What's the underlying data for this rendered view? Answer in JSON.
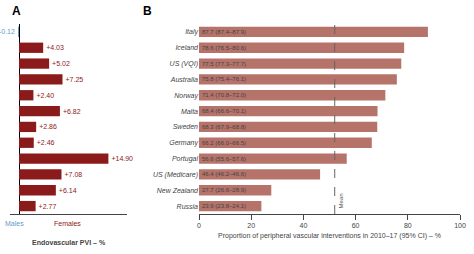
{
  "chart_data": [
    {
      "type": "bar",
      "orientation": "horizontal",
      "title": "A",
      "categories": [
        null,
        null,
        null,
        null,
        null,
        null,
        null,
        null,
        null,
        null,
        null,
        null
      ],
      "values": [
        -0.12,
        4.03,
        5.02,
        7.25,
        2.4,
        6.82,
        2.86,
        2.46,
        14.9,
        7.08,
        6.14,
        2.77
      ],
      "value_labels": [
        "-0.12",
        "+4.03",
        "+5.02",
        "+7.25",
        "+2.40",
        "+6.82",
        "+2.86",
        "+2.46",
        "+14.90",
        "+7.08",
        "+6.14",
        "+2.77"
      ],
      "data_labels": true,
      "colors": [
        "#6699CC",
        "#8B1A1A",
        "#8B1A1A",
        "#8B1A1A",
        "#8B1A1A",
        "#8B1A1A",
        "#8B1A1A",
        "#8B1A1A",
        "#8B1A1A",
        "#8B1A1A",
        "#8B1A1A",
        "#8B1A1A"
      ],
      "xlim": [
        -1.5,
        18
      ],
      "xticks": [],
      "tick_labels": false,
      "grid": false,
      "xlabel": "Endovascular PVI – %",
      "annotations": [
        {
          "text": "Males",
          "x": -0.8,
          "color": "#6699CC"
        },
        {
          "text": "Females",
          "x": 8,
          "color": "#8B1A1A"
        }
      ]
    },
    {
      "type": "bar",
      "orientation": "horizontal",
      "title": "B",
      "categories": [
        "Italy",
        "Iceland",
        "US (VQI)",
        "Australia",
        "Norway",
        "Malta",
        "Sweden",
        "Germany",
        "Portugal",
        "US (Medicare)",
        "New Zealand",
        "Russia"
      ],
      "values": [
        87.7,
        78.6,
        77.5,
        75.8,
        71.4,
        68.4,
        68.3,
        66.2,
        56.6,
        46.4,
        27.7,
        23.9
      ],
      "value_labels": [
        "87.7 (87.4–87.9)",
        "78.6 (76.5–80.6)",
        "77.5 (77.3–77.7)",
        "75.8 (75.4–76.1)",
        "71.4 (70.8–72.0)",
        "68.4 (66.6–70.1)",
        "68.3 (67.9–68.8)",
        "66.2 (66.0–66.5)",
        "56.6 (55.6–57.6)",
        "46.4 (46.2–46.6)",
        "27.7 (26.6–28.9)",
        "23.9 (23.8–24.1)"
      ],
      "data_labels": true,
      "color": "#b5736a",
      "xlim": [
        0,
        100
      ],
      "xticks": [
        0,
        20,
        40,
        60,
        80,
        100
      ],
      "grid": false,
      "xlabel": "Proportion of peripheral vascular interventions in 2010–17 (95% CI) – %",
      "mean_line": {
        "value": 52,
        "label": "Mean"
      }
    }
  ]
}
